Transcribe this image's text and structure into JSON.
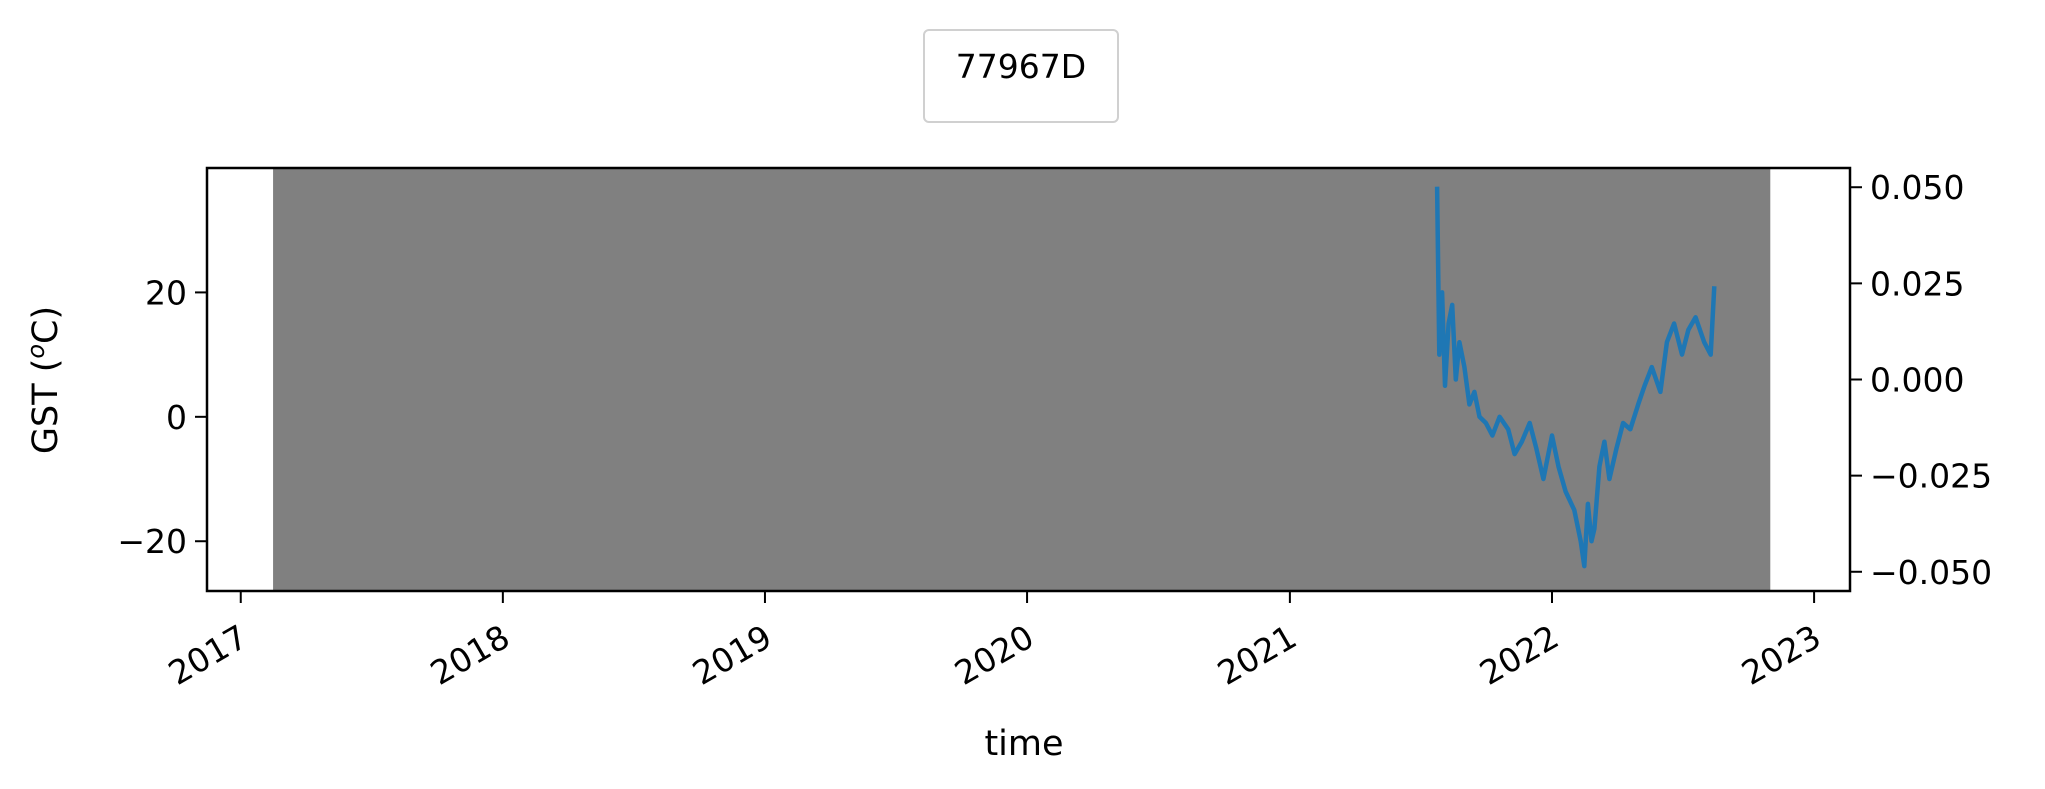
{
  "chart_data": {
    "type": "line",
    "title": "",
    "legend": {
      "entries": [
        "77967D"
      ],
      "placement": "top-center"
    },
    "xlabel": "time",
    "ylabel": "GST (",
    "ylabel_sup": "o",
    "ylabel_tail": "C)",
    "xlim": [
      "2016-11-15",
      "2023-02-20"
    ],
    "ylim": [
      -28,
      40
    ],
    "y2lim": [
      -0.055,
      0.055
    ],
    "x_ticks": [
      "2017",
      "2018",
      "2019",
      "2020",
      "2021",
      "2022",
      "2023"
    ],
    "y_ticks": [
      "−20",
      "0",
      "20"
    ],
    "y2_ticks": [
      "−0.050",
      "−0.025",
      "0.000",
      "0.025",
      "0.050"
    ],
    "grid": false,
    "colors": {
      "series": "#1f77b4",
      "shading": "#808080"
    },
    "shaded_region": {
      "x_start": "2017-02-15",
      "x_end": "2022-11-01"
    },
    "series": [
      {
        "name": "77967D",
        "x": [
          "2021-07-25",
          "2021-07-28",
          "2021-08-01",
          "2021-08-05",
          "2021-08-10",
          "2021-08-15",
          "2021-08-20",
          "2021-08-25",
          "2021-09-01",
          "2021-09-08",
          "2021-09-15",
          "2021-09-22",
          "2021-10-01",
          "2021-10-10",
          "2021-10-20",
          "2021-11-01",
          "2021-11-10",
          "2021-11-20",
          "2021-12-01",
          "2021-12-10",
          "2021-12-20",
          "2022-01-01",
          "2022-01-10",
          "2022-01-20",
          "2022-02-01",
          "2022-02-10",
          "2022-02-15",
          "2022-02-20",
          "2022-02-25",
          "2022-03-01",
          "2022-03-08",
          "2022-03-15",
          "2022-03-22",
          "2022-04-01",
          "2022-04-10",
          "2022-04-20",
          "2022-05-01",
          "2022-05-10",
          "2022-05-20",
          "2022-06-01",
          "2022-06-10",
          "2022-06-20",
          "2022-07-01",
          "2022-07-10",
          "2022-07-20",
          "2022-08-01",
          "2022-08-10",
          "2022-08-15"
        ],
        "y": [
          37,
          10,
          20,
          5,
          15,
          18,
          6,
          12,
          8,
          2,
          4,
          0,
          -1,
          -3,
          0,
          -2,
          -6,
          -4,
          -1,
          -5,
          -10,
          -3,
          -8,
          -12,
          -15,
          -20,
          -24,
          -14,
          -20,
          -18,
          -8,
          -4,
          -10,
          -5,
          -1,
          -2,
          2,
          5,
          8,
          4,
          12,
          15,
          10,
          14,
          16,
          12,
          10,
          21
        ]
      }
    ]
  }
}
